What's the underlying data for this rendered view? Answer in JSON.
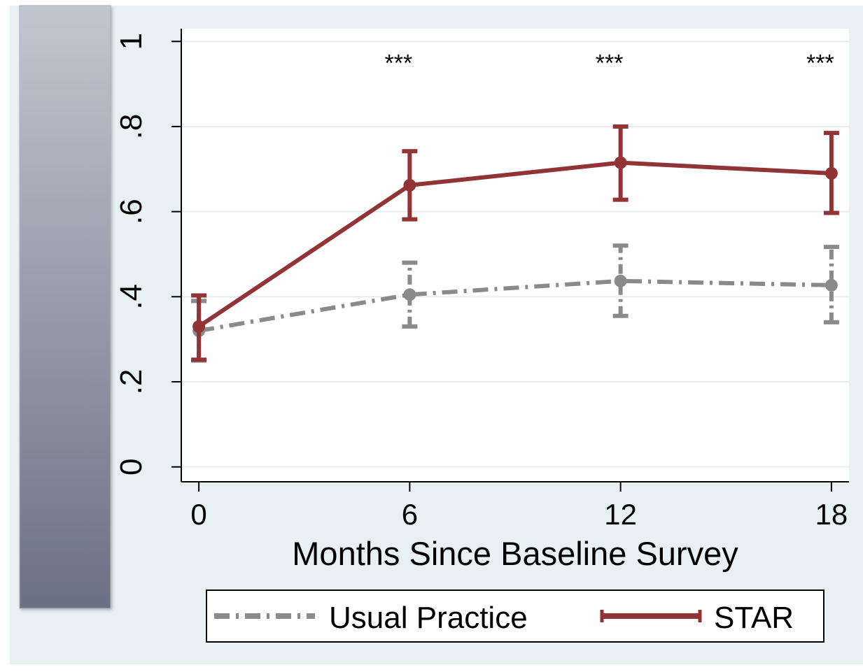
{
  "chart_data": {
    "type": "line",
    "title": "",
    "xlabel": "Months Since Baseline Survey",
    "ylabel": "",
    "x": [
      0,
      6,
      12,
      18
    ],
    "x_tick_labels": [
      "0",
      "6",
      "12",
      "18"
    ],
    "xlim": [
      -0.5,
      18.5
    ],
    "y_ticks": [
      0,
      0.2,
      0.4,
      0.6,
      0.8,
      1
    ],
    "y_tick_labels": [
      "0",
      ".2",
      ".4",
      ".6",
      ".8",
      "1"
    ],
    "ylim": [
      -0.035,
      1.03
    ],
    "grid": true,
    "legend_position": "bottom",
    "series": [
      {
        "name": "Usual Practice",
        "color": "#8a8a8a",
        "style": "dash-dot",
        "values": [
          0.32,
          0.405,
          0.437,
          0.427
        ],
        "ci_lower": [
          0.25,
          0.33,
          0.355,
          0.34
        ],
        "ci_upper": [
          0.39,
          0.48,
          0.52,
          0.517
        ]
      },
      {
        "name": "STAR",
        "color": "#923436",
        "style": "solid",
        "values": [
          0.33,
          0.662,
          0.715,
          0.69
        ],
        "ci_lower": [
          0.252,
          0.582,
          0.628,
          0.597
        ],
        "ci_upper": [
          0.403,
          0.742,
          0.8,
          0.785
        ]
      }
    ],
    "annotations": [
      {
        "x": 6,
        "y": 0.95,
        "text": "***"
      },
      {
        "x": 12,
        "y": 0.95,
        "text": "***"
      },
      {
        "x": 18,
        "y": 0.95,
        "text": "***"
      }
    ],
    "colors": {
      "background": "#e9f0f3",
      "plot_background": "#ffffff",
      "gridline": "#e6edf0",
      "sidebar_top": "#c2c6d0",
      "sidebar_bottom": "#6b7184"
    }
  }
}
